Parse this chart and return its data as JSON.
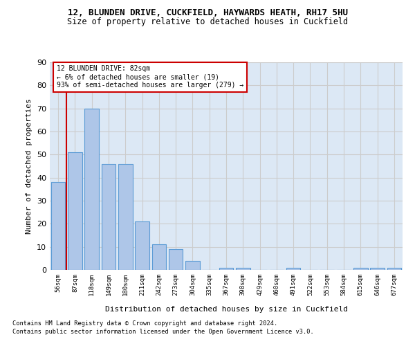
{
  "title1": "12, BLUNDEN DRIVE, CUCKFIELD, HAYWARDS HEATH, RH17 5HU",
  "title2": "Size of property relative to detached houses in Cuckfield",
  "xlabel": "Distribution of detached houses by size in Cuckfield",
  "ylabel": "Number of detached properties",
  "categories": [
    "56sqm",
    "87sqm",
    "118sqm",
    "149sqm",
    "180sqm",
    "211sqm",
    "242sqm",
    "273sqm",
    "304sqm",
    "335sqm",
    "367sqm",
    "398sqm",
    "429sqm",
    "460sqm",
    "491sqm",
    "522sqm",
    "553sqm",
    "584sqm",
    "615sqm",
    "646sqm",
    "677sqm"
  ],
  "values": [
    38,
    51,
    70,
    46,
    46,
    21,
    11,
    9,
    4,
    0,
    1,
    1,
    0,
    0,
    1,
    0,
    0,
    0,
    1,
    1,
    1
  ],
  "bar_color": "#aec6e8",
  "bar_edge_color": "#5b9bd5",
  "vline_color": "#cc0000",
  "annotation_title": "12 BLUNDEN DRIVE: 82sqm",
  "annotation_line2": "← 6% of detached houses are smaller (19)",
  "annotation_line3": "93% of semi-detached houses are larger (279) →",
  "annotation_box_color": "#cc0000",
  "ylim": [
    0,
    90
  ],
  "yticks": [
    0,
    10,
    20,
    30,
    40,
    50,
    60,
    70,
    80,
    90
  ],
  "grid_color": "#cccccc",
  "bg_color": "#dce8f5",
  "footnote1": "Contains HM Land Registry data © Crown copyright and database right 2024.",
  "footnote2": "Contains public sector information licensed under the Open Government Licence v3.0."
}
